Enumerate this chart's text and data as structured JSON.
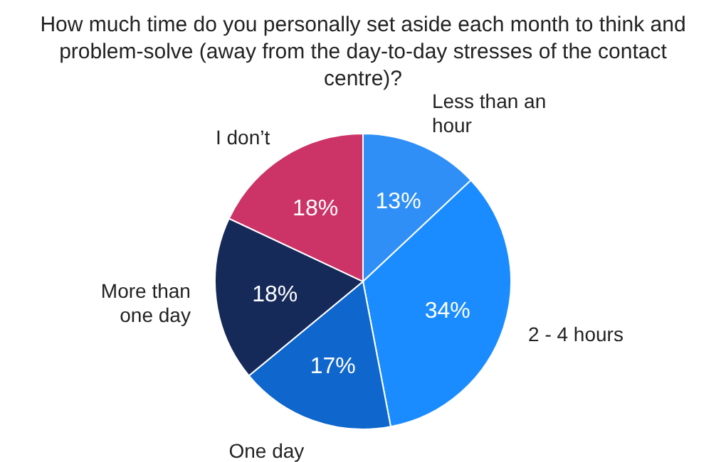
{
  "chart_data": {
    "type": "pie",
    "title": "How much time do you personally set aside each month to think and problem-solve (away from the day-to-day stresses of the contact centre)?",
    "categories": [
      "Less than an hour",
      "2 - 4 hours",
      "One day",
      "More than one day",
      "I don’t"
    ],
    "values": [
      13,
      34,
      17,
      18,
      18
    ],
    "colors": [
      "#2f8ff7",
      "#1a8cff",
      "#0f66cc",
      "#162a5a",
      "#cc3366"
    ],
    "value_labels": [
      "13%",
      "34%",
      "17%",
      "18%",
      "18%"
    ]
  }
}
